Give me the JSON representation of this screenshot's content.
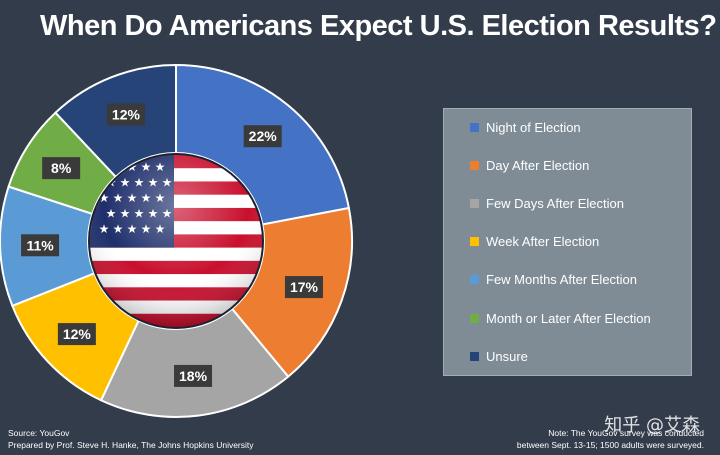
{
  "title": "When Do Americans Expect U.S. Election Results?",
  "chart_data": {
    "type": "pie",
    "title": "When Do Americans Expect U.S. Election Results?",
    "categories": [
      "Night of Election",
      "Day After Election",
      "Few Days After Election",
      "Week After Election",
      "Few Months After Election",
      "Month or Later After Election",
      "Unsure"
    ],
    "values": [
      22,
      17,
      18,
      12,
      11,
      8,
      12
    ],
    "labels": [
      "22%",
      "17%",
      "18%",
      "12%",
      "11%",
      "8%",
      "12%"
    ],
    "colors": [
      "#4472c4",
      "#ed7d31",
      "#a5a5a5",
      "#ffc000",
      "#5b9bd5",
      "#70ad47",
      "#264478"
    ],
    "legend_position": "right"
  },
  "legend": {
    "items": [
      {
        "label": "Night of Election",
        "color": "#4472c4"
      },
      {
        "label": "Day After Election",
        "color": "#ed7d31"
      },
      {
        "label": "Few Days After Election",
        "color": "#a5a5a5"
      },
      {
        "label": "Week After Election",
        "color": "#ffc000"
      },
      {
        "label": "Few Months After Election",
        "color": "#5b9bd5"
      },
      {
        "label": "Month or Later After Election",
        "color": "#70ad47"
      },
      {
        "label": "Unsure",
        "color": "#264478"
      }
    ]
  },
  "footer": {
    "source": "Source: YouGov",
    "prepared": "Prepared by Prof. Steve H. Hanke, The Johns Hopkins University",
    "note_line1": "Note: The YouGov survey was conducted",
    "note_line2": "between Sept. 13-15; 1500 adults were surveyed."
  },
  "watermark": "知乎 @艾森",
  "center_image": "us-flag-icon"
}
